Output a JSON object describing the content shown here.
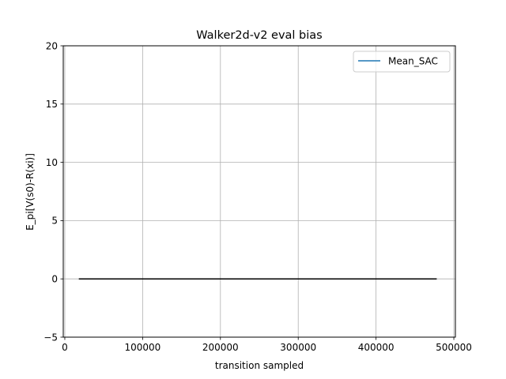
{
  "chart_data": {
    "type": "line",
    "title": "Walker2d-v2 eval bias",
    "xlabel": "transition sampled",
    "ylabel": "E_pi[V(s0)-R(xi)]",
    "xlim": [
      -2000,
      502000
    ],
    "ylim": [
      -5,
      20
    ],
    "xticks": [
      0,
      100000,
      200000,
      300000,
      400000,
      500000
    ],
    "yticks": [
      -5,
      0,
      5,
      10,
      15,
      20
    ],
    "grid": true,
    "legend_position": "top-right",
    "series": [
      {
        "name": "Mean_SAC",
        "color": "#1f77b4",
        "x": [],
        "y": []
      }
    ],
    "reference_line": {
      "color": "#000000",
      "y": 0,
      "x_start": 18000,
      "x_end": 478000
    }
  }
}
